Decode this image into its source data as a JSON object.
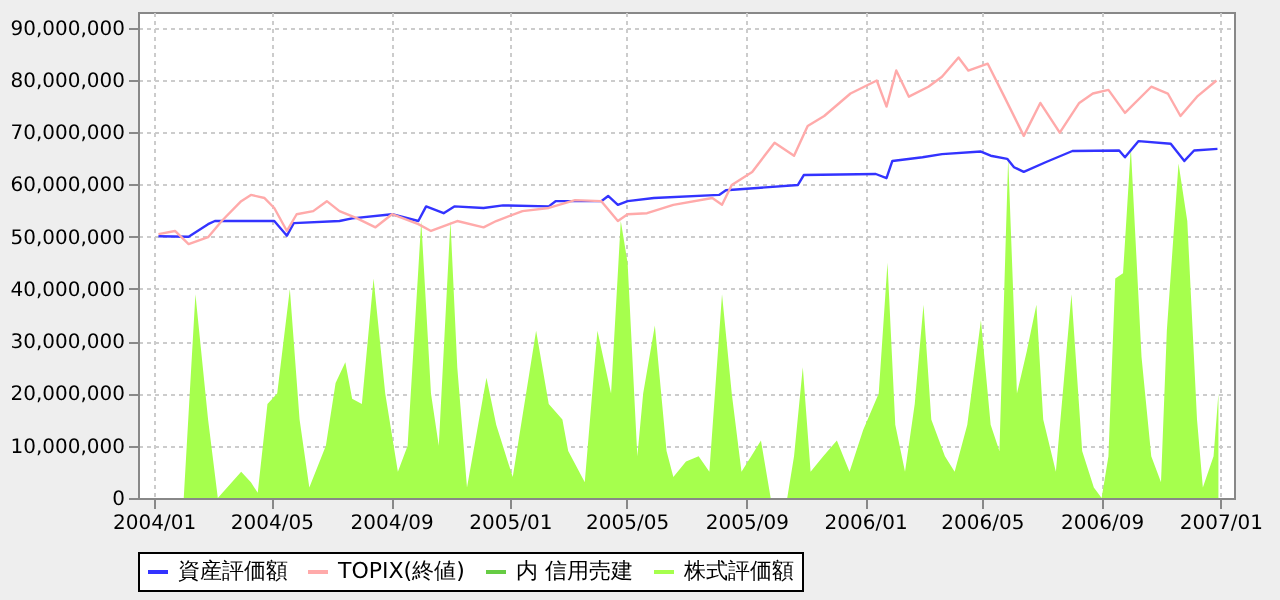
{
  "chart_data": {
    "type": "line",
    "xlim": [
      "2003-12-16",
      "2007-01-15"
    ],
    "xticks": [
      {
        "value": "2004-01-01",
        "label": "2004/01"
      },
      {
        "value": "2004-05-01",
        "label": "2004/05"
      },
      {
        "value": "2004-09-01",
        "label": "2004/09"
      },
      {
        "value": "2005-01-01",
        "label": "2005/01"
      },
      {
        "value": "2005-05-01",
        "label": "2005/05"
      },
      {
        "value": "2005-09-01",
        "label": "2005/09"
      },
      {
        "value": "2006-01-01",
        "label": "2006/01"
      },
      {
        "value": "2006-05-01",
        "label": "2006/05"
      },
      {
        "value": "2006-09-01",
        "label": "2006/09"
      },
      {
        "value": "2007-01-01",
        "label": "2007/01"
      }
    ],
    "ylim": [
      0,
      93000000
    ],
    "yticks": [
      0,
      {
        "value": 10000000,
        "label": "10,000,000"
      },
      {
        "value": 20000000,
        "label": "20,000,000"
      },
      {
        "value": 30000000,
        "label": "30,000,000"
      },
      {
        "value": 40000000,
        "label": "40,000,000"
      },
      {
        "value": 50000000,
        "label": "50,000,000"
      },
      {
        "value": 60000000,
        "label": "60,000,000"
      },
      {
        "value": 70000000,
        "label": "70,000,000"
      },
      {
        "value": 80000000,
        "label": "80,000,000"
      },
      {
        "value": 90000000,
        "label": "90,000,000"
      }
    ],
    "grid": true,
    "legend": "bottom",
    "marker": "none",
    "line_style": "solid",
    "series": [
      {
        "name": "資産評価額",
        "color": "#3333ff",
        "x": [
          "2004-01-06",
          "2004-02-06",
          "2004-02-26",
          "2004-03-04",
          "2004-05-04",
          "2004-05-17",
          "2004-05-24",
          "2004-07-10",
          "2004-07-23",
          "2004-09-02",
          "2004-09-29",
          "2004-10-07",
          "2004-10-25",
          "2004-11-05",
          "2004-12-05",
          "2004-12-25",
          "2005-02-10",
          "2005-02-17",
          "2005-04-05",
          "2005-04-12",
          "2005-04-22",
          "2005-05-02",
          "2005-05-29",
          "2005-08-04",
          "2005-08-11",
          "2005-10-24",
          "2005-10-30",
          "2006-01-12",
          "2006-01-23",
          "2006-01-29",
          "2006-03-01",
          "2006-03-21",
          "2006-04-30",
          "2006-05-10",
          "2006-05-27",
          "2006-06-03",
          "2006-06-13",
          "2006-07-06",
          "2006-08-02",
          "2006-09-19",
          "2006-09-25",
          "2006-10-09",
          "2006-11-11",
          "2006-11-25",
          "2006-12-05",
          "2006-12-29"
        ],
        "values": [
          50100000,
          50000000,
          52400000,
          53000000,
          53000000,
          50200000,
          52600000,
          53000000,
          53500000,
          54300000,
          53000000,
          55800000,
          54500000,
          55800000,
          55500000,
          56000000,
          55800000,
          56800000,
          56800000,
          57800000,
          56100000,
          56800000,
          57400000,
          58000000,
          58900000,
          59900000,
          61800000,
          62000000,
          61200000,
          64500000,
          65200000,
          65800000,
          66300000,
          65500000,
          64900000,
          63300000,
          62400000,
          64300000,
          66400000,
          66500000,
          65200000,
          68300000,
          67800000,
          64500000,
          66500000,
          66800000
        ]
      },
      {
        "name": "TOPIX(終値)",
        "color": "#ffaaaa",
        "x": [
          "2004-01-06",
          "2004-01-23",
          "2004-02-06",
          "2004-02-26",
          "2004-03-11",
          "2004-03-31",
          "2004-04-10",
          "2004-04-24",
          "2004-05-04",
          "2004-05-17",
          "2004-05-27",
          "2004-06-13",
          "2004-06-27",
          "2004-07-10",
          "2004-07-27",
          "2004-08-16",
          "2004-09-02",
          "2004-09-29",
          "2004-10-12",
          "2004-11-08",
          "2004-12-05",
          "2004-12-18",
          "2005-01-14",
          "2005-02-10",
          "2005-03-09",
          "2005-04-05",
          "2005-04-22",
          "2005-05-02",
          "2005-05-22",
          "2005-06-18",
          "2005-07-28",
          "2005-08-07",
          "2005-08-17",
          "2005-09-07",
          "2005-09-30",
          "2005-10-20",
          "2005-11-03",
          "2005-11-20",
          "2005-12-17",
          "2006-01-13",
          "2006-01-23",
          "2006-02-02",
          "2006-02-15",
          "2006-03-07",
          "2006-03-21",
          "2006-04-07",
          "2006-04-17",
          "2006-05-07",
          "2006-05-24",
          "2006-06-13",
          "2006-06-30",
          "2006-07-20",
          "2006-08-09",
          "2006-08-23",
          "2006-09-08",
          "2006-09-25",
          "2006-10-22",
          "2006-11-08",
          "2006-11-21",
          "2006-12-08",
          "2006-12-28"
        ],
        "values": [
          50500000,
          51100000,
          48600000,
          49900000,
          53000000,
          56800000,
          58000000,
          57400000,
          55500000,
          51100000,
          54300000,
          54900000,
          56800000,
          54900000,
          53600000,
          51800000,
          54300000,
          52400000,
          51100000,
          53000000,
          51800000,
          53000000,
          54900000,
          55500000,
          57000000,
          56800000,
          53000000,
          54300000,
          54500000,
          56100000,
          57400000,
          56100000,
          59900000,
          62400000,
          68000000,
          65500000,
          71200000,
          73100000,
          77400000,
          79900000,
          74900000,
          81800000,
          76800000,
          78700000,
          80600000,
          84300000,
          81800000,
          83100000,
          76800000,
          69300000,
          75600000,
          69900000,
          75600000,
          77400000,
          78100000,
          73700000,
          78700000,
          77400000,
          73100000,
          76800000,
          79900000
        ]
      },
      {
        "name": "内 信用売建",
        "type": "area",
        "color": "#66cc44"
      },
      {
        "name": "株式評価額",
        "type": "area",
        "color": "#a6ff4d",
        "x": [
          "2004-02-01",
          "2004-02-13",
          "2004-02-26",
          "2004-03-07",
          "2004-03-31",
          "2004-04-10",
          "2004-04-17",
          "2004-04-27",
          "2004-05-07",
          "2004-05-20",
          "2004-05-30",
          "2004-06-09",
          "2004-06-26",
          "2004-07-06",
          "2004-07-16",
          "2004-07-23",
          "2004-08-02",
          "2004-08-14",
          "2004-08-26",
          "2004-09-08",
          "2004-09-18",
          "2004-10-02",
          "2004-10-12",
          "2004-10-20",
          "2004-11-01",
          "2004-11-08",
          "2004-11-18",
          "2004-12-08",
          "2004-12-18",
          "2005-01-04",
          "2005-01-28",
          "2005-02-10",
          "2005-02-24",
          "2005-03-02",
          "2005-03-19",
          "2005-04-01",
          "2005-04-15",
          "2005-04-25",
          "2005-05-02",
          "2005-05-12",
          "2005-05-18",
          "2005-05-30",
          "2005-06-11",
          "2005-06-18",
          "2005-07-01",
          "2005-07-14",
          "2005-07-25",
          "2005-08-07",
          "2005-08-17",
          "2005-08-27",
          "2005-09-06",
          "2005-09-16",
          "2005-09-26",
          "2005-10-13",
          "2005-10-20",
          "2005-10-29",
          "2005-11-06",
          "2005-11-19",
          "2005-12-03",
          "2005-12-16",
          "2005-12-30",
          "2006-01-15",
          "2006-01-24",
          "2006-02-01",
          "2006-02-11",
          "2006-02-21",
          "2006-03-02",
          "2006-03-10",
          "2006-03-24",
          "2006-04-03",
          "2006-04-16",
          "2006-04-30",
          "2006-05-10",
          "2006-05-19",
          "2006-05-28",
          "2006-06-06",
          "2006-06-16",
          "2006-06-26",
          "2006-07-03",
          "2006-07-16",
          "2006-08-01",
          "2006-08-12",
          "2006-08-24",
          "2006-09-01",
          "2006-09-08",
          "2006-09-15",
          "2006-09-23",
          "2006-10-01",
          "2006-10-12",
          "2006-10-22",
          "2006-11-01",
          "2006-11-07",
          "2006-11-19",
          "2006-11-28",
          "2006-12-08",
          "2006-12-14",
          "2006-12-25",
          "2006-12-30"
        ],
        "values": [
          0,
          39000000,
          15000000,
          0,
          5000000,
          3000000,
          1000000,
          18000000,
          20000000,
          40000000,
          15000000,
          2000000,
          10000000,
          22000000,
          26000000,
          19000000,
          18000000,
          42000000,
          20000000,
          5000000,
          10000000,
          53000000,
          20000000,
          10000000,
          53000000,
          25000000,
          2000000,
          23000000,
          14000000,
          4000000,
          32000000,
          18000000,
          15000000,
          9000000,
          3000000,
          32000000,
          20000000,
          53000000,
          45000000,
          8000000,
          20000000,
          33000000,
          9000000,
          4000000,
          7000000,
          8000000,
          5000000,
          39000000,
          20000000,
          5000000,
          8000000,
          11000000,
          0,
          0,
          8000000,
          25000000,
          5000000,
          8000000,
          11000000,
          5000000,
          13000000,
          20000000,
          45000000,
          14000000,
          5000000,
          18000000,
          37000000,
          15000000,
          8000000,
          5000000,
          14000000,
          34000000,
          14000000,
          9000000,
          65000000,
          20000000,
          28000000,
          37000000,
          15000000,
          5000000,
          39000000,
          9000000,
          2000000,
          0,
          8000000,
          42000000,
          43000000,
          67000000,
          27000000,
          8000000,
          3000000,
          32000000,
          64000000,
          53000000,
          15000000,
          2000000,
          8000000,
          20000000
        ]
      }
    ]
  }
}
